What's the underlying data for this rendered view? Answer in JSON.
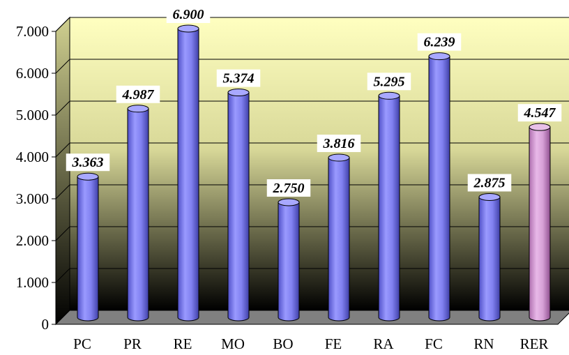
{
  "chart_data": {
    "type": "bar",
    "categories": [
      "PC",
      "PR",
      "RE",
      "MO",
      "BO",
      "FE",
      "RA",
      "FC",
      "RN",
      "RER"
    ],
    "values": [
      3.363,
      4.987,
      6.9,
      5.374,
      2.75,
      3.816,
      5.295,
      6.239,
      2.875,
      4.547
    ],
    "value_labels": [
      "3.363",
      "4.987",
      "6.900",
      "5.374",
      "2.750",
      "3.816",
      "5.295",
      "6.239",
      "2.875",
      "4.547"
    ],
    "y_ticks": [
      "0",
      "1.000",
      "2.000",
      "3.000",
      "4.000",
      "5.000",
      "6.000",
      "7.000"
    ],
    "ylim": [
      0,
      7
    ],
    "grid": true,
    "colors": {
      "bar": "#8080ff",
      "highlight_bar": "#d6a0d6",
      "wall_top": "#ffffc0",
      "wall_bottom": "#000000",
      "floor": "#808080"
    }
  }
}
